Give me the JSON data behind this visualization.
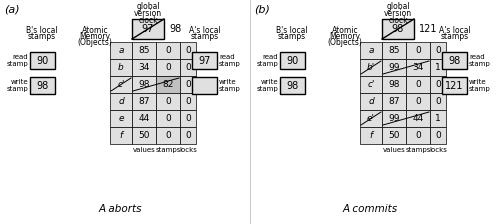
{
  "cell_color": "#e0e0e0",
  "highlight_color": "#c0c0c0",
  "part_a": {
    "clock_old": "97",
    "clock_new": "98",
    "rows": [
      {
        "label": "a",
        "struck_label": false,
        "value": "85",
        "stamp": "0",
        "lock": "0",
        "struck_val": false
      },
      {
        "label": "b",
        "struck_label": false,
        "value": "34",
        "stamp": "0",
        "lock": "0",
        "struck_val": false
      },
      {
        "label": "c'",
        "struck_label": true,
        "value": "98",
        "stamp": "82",
        "lock": "0",
        "struck_val": true,
        "highlight_stamp": true
      },
      {
        "label": "d",
        "struck_label": false,
        "value": "87",
        "stamp": "0",
        "lock": "0",
        "struck_val": false
      },
      {
        "label": "e",
        "struck_label": false,
        "value": "44",
        "stamp": "0",
        "lock": "0",
        "struck_val": false
      },
      {
        "label": "f",
        "struck_label": false,
        "value": "50",
        "stamp": "0",
        "lock": "0",
        "struck_val": false
      }
    ],
    "B_rs": "90",
    "B_ws": "98",
    "A_rs": "97",
    "A_ws": ""
  },
  "part_b": {
    "clock_old": "98",
    "clock_new": "121",
    "rows": [
      {
        "label": "a",
        "struck_label": false,
        "value": "85",
        "stamp": "0",
        "lock": "0",
        "struck_val": false
      },
      {
        "label": "b'",
        "struck_label": true,
        "value": "99",
        "stamp": "34",
        "lock": "1",
        "struck_val": true,
        "highlight_stamp": false
      },
      {
        "label": "c'",
        "struck_label": false,
        "value": "98",
        "stamp": "0",
        "lock": "0",
        "struck_val": false
      },
      {
        "label": "d",
        "struck_label": false,
        "value": "87",
        "stamp": "0",
        "lock": "0",
        "struck_val": false
      },
      {
        "label": "e'",
        "struck_label": true,
        "value": "99",
        "stamp": "44",
        "lock": "1",
        "struck_val": true,
        "highlight_stamp": false
      },
      {
        "label": "f",
        "struck_label": false,
        "value": "50",
        "stamp": "0",
        "lock": "0",
        "struck_val": false
      }
    ],
    "B_rs": "90",
    "B_ws": "98",
    "A_rs": "98",
    "A_ws": "121"
  }
}
